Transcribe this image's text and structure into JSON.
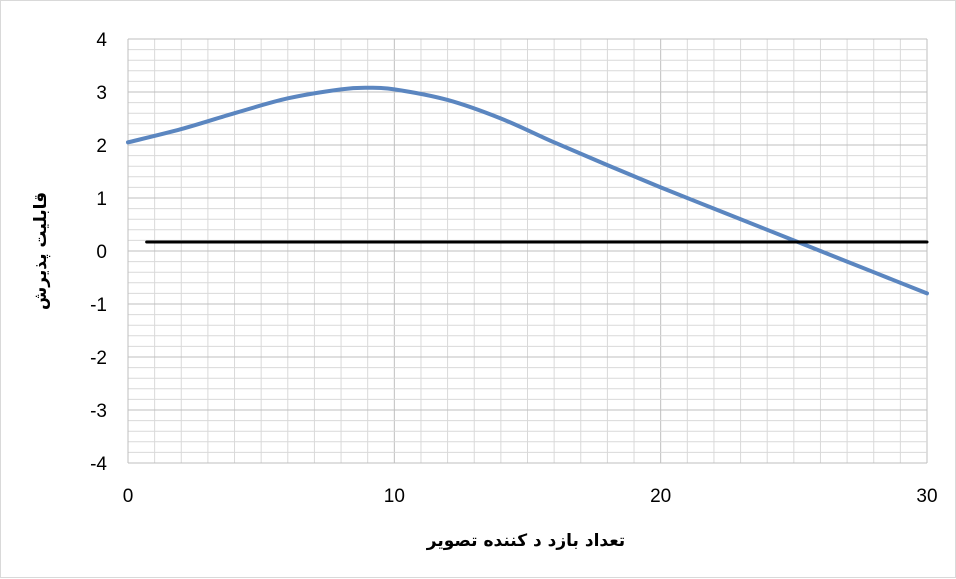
{
  "chart_data": {
    "type": "line",
    "title": "",
    "xlabel": "تعداد بازد د کننده     تصویر",
    "ylabel": "قابلیت پذیرش",
    "xlim": [
      0,
      30
    ],
    "ylim": [
      -4,
      4
    ],
    "x_ticks": [
      "0",
      "10",
      "20",
      "30"
    ],
    "y_ticks": [
      "4",
      "3",
      "2",
      "1",
      "0",
      "-1",
      "-2",
      "-3",
      "-4"
    ],
    "grid": true,
    "legend": "none",
    "series": [
      {
        "color": "#5b86c0",
        "x": [
          0,
          2,
          4,
          6,
          8,
          9,
          10,
          12,
          14,
          16,
          18,
          20,
          22,
          24,
          26,
          28,
          30
        ],
        "y": [
          2.05,
          2.3,
          2.6,
          2.88,
          3.05,
          3.08,
          3.05,
          2.85,
          2.5,
          2.05,
          1.62,
          1.2,
          0.8,
          0.4,
          0.0,
          -0.4,
          -0.8
        ]
      },
      {
        "color": "#000000",
        "x": [
          0.7,
          30
        ],
        "y": [
          0.17,
          0.17
        ]
      }
    ]
  }
}
